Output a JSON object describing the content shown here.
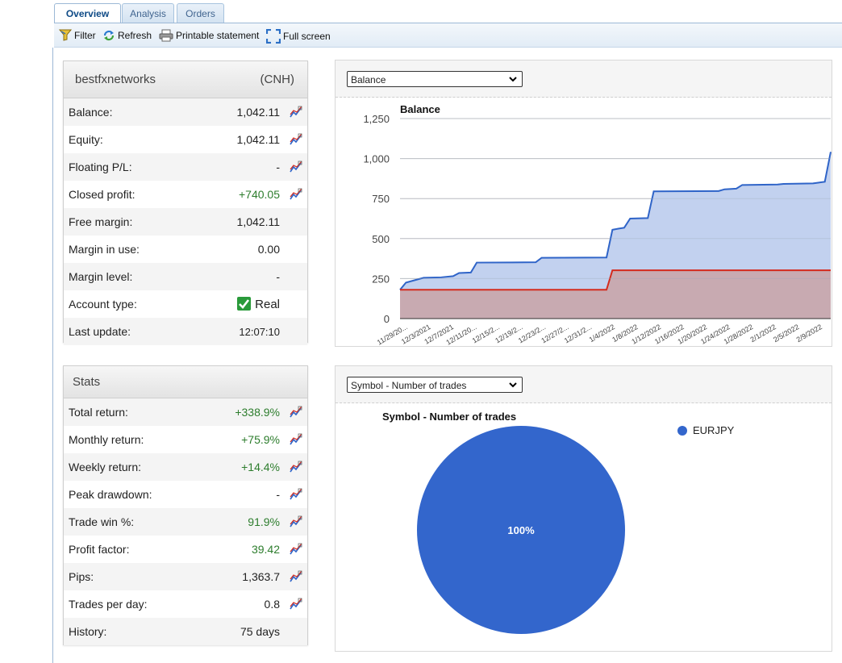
{
  "tabs": [
    {
      "label": "Overview",
      "active": true
    },
    {
      "label": "Analysis",
      "active": false
    },
    {
      "label": "Orders",
      "active": false
    }
  ],
  "toolbar": {
    "filter": "Filter",
    "refresh": "Refresh",
    "print": "Printable statement",
    "fullscreen": "Full screen"
  },
  "account": {
    "name": "bestfxnetworks",
    "currency": "(CNH)",
    "rows": [
      {
        "label": "Balance:",
        "value": "1,042.11",
        "chart_icon": true,
        "green": false
      },
      {
        "label": "Equity:",
        "value": "1,042.11",
        "chart_icon": true,
        "green": false
      },
      {
        "label": "Floating P/L:",
        "value": "-",
        "chart_icon": true,
        "green": false
      },
      {
        "label": "Closed profit:",
        "value": "+740.05",
        "chart_icon": true,
        "green": true
      },
      {
        "label": "Free margin:",
        "value": "1,042.11",
        "chart_icon": false,
        "green": false
      },
      {
        "label": "Margin in use:",
        "value": "0.00",
        "chart_icon": false,
        "green": false
      },
      {
        "label": "Margin level:",
        "value": "-",
        "chart_icon": false,
        "green": false
      },
      {
        "label": "Account type:",
        "value": "Real",
        "chart_icon": false,
        "green": false,
        "check": true
      },
      {
        "label": "Last update:",
        "value": "12:07:10",
        "chart_icon": false,
        "green": false
      }
    ]
  },
  "stats": {
    "title": "Stats",
    "rows": [
      {
        "label": "Total return:",
        "value": "+338.9%",
        "chart_icon": true,
        "green": true
      },
      {
        "label": "Monthly return:",
        "value": "+75.9%",
        "chart_icon": true,
        "green": true
      },
      {
        "label": "Weekly return:",
        "value": "+14.4%",
        "chart_icon": true,
        "green": true
      },
      {
        "label": "Peak drawdown:",
        "value": "-",
        "chart_icon": true,
        "green": false
      },
      {
        "label": "Trade win %:",
        "value": "91.9%",
        "chart_icon": true,
        "green": true
      },
      {
        "label": "Profit factor:",
        "value": "39.42",
        "chart_icon": true,
        "green": true
      },
      {
        "label": "Pips:",
        "value": "1,363.7",
        "chart_icon": true,
        "green": false
      },
      {
        "label": "Trades per day:",
        "value": "0.8",
        "chart_icon": true,
        "green": false
      },
      {
        "label": "History:",
        "value": "75 days",
        "chart_icon": false,
        "green": false
      }
    ]
  },
  "balance_select": "Balance",
  "pie_select": "Symbol - Number of trades",
  "colors": {
    "balance": "#2f64c8",
    "balance_fill": "#c2d1ef",
    "profit": "#d42a1d",
    "profit_fill": "#c9a3a6",
    "pie": "#3366cc"
  },
  "chart_data": [
    {
      "type": "area",
      "title": "Balance",
      "ylim": [
        0,
        1250
      ],
      "yticks": [
        "1,250",
        "1,000",
        "750",
        "500",
        "250",
        "0"
      ],
      "yticks_values": [
        1250,
        1000,
        750,
        500,
        250,
        0
      ],
      "xtick_labels": [
        "11/29/20...",
        "12/3/2021",
        "12/7/2021",
        "12/11/20...",
        "12/15/2...",
        "12/19/2...",
        "12/23/2...",
        "12/27/2...",
        "12/31/2...",
        "1/4/2022",
        "1/8/2022",
        "1/12/2022",
        "1/16/2022",
        "1/20/2022",
        "1/24/2022",
        "1/28/2022",
        "2/1/2022",
        "2/5/2022",
        "2/9/2022"
      ],
      "x_start": "2021-11-29",
      "x_end": "2022-02-10",
      "series": [
        {
          "name": "Balance",
          "points": [
            [
              "2021-11-29",
              180
            ],
            [
              "2021-11-30",
              225
            ],
            [
              "2021-12-01",
              235
            ],
            [
              "2021-12-03",
              255
            ],
            [
              "2021-12-06",
              258
            ],
            [
              "2021-12-08",
              265
            ],
            [
              "2021-12-09",
              285
            ],
            [
              "2021-12-11",
              288
            ],
            [
              "2021-12-12",
              350
            ],
            [
              "2021-12-22",
              352
            ],
            [
              "2021-12-23",
              380
            ],
            [
              "2022-01-03",
              382
            ],
            [
              "2022-01-04",
              555
            ],
            [
              "2022-01-05",
              562
            ],
            [
              "2022-01-06",
              568
            ],
            [
              "2022-01-07",
              625
            ],
            [
              "2022-01-10",
              628
            ],
            [
              "2022-01-11",
              795
            ],
            [
              "2022-01-22",
              797
            ],
            [
              "2022-01-23",
              808
            ],
            [
              "2022-01-25",
              812
            ],
            [
              "2022-01-26",
              835
            ],
            [
              "2022-02-01",
              838
            ],
            [
              "2022-02-02",
              842
            ],
            [
              "2022-02-07",
              845
            ],
            [
              "2022-02-08",
              850
            ],
            [
              "2022-02-09",
              855
            ],
            [
              "2022-02-10",
              1042
            ]
          ]
        },
        {
          "name": "Closed profit",
          "points": [
            [
              "2021-11-29",
              180
            ],
            [
              "2022-01-03",
              180
            ],
            [
              "2022-01-04",
              302
            ],
            [
              "2022-02-10",
              302
            ]
          ]
        }
      ]
    },
    {
      "type": "pie",
      "title": "Symbol - Number of trades",
      "categories": [
        "EURJPY"
      ],
      "values": [
        100
      ],
      "data_labels": [
        "100%"
      ],
      "legend": "right"
    }
  ]
}
